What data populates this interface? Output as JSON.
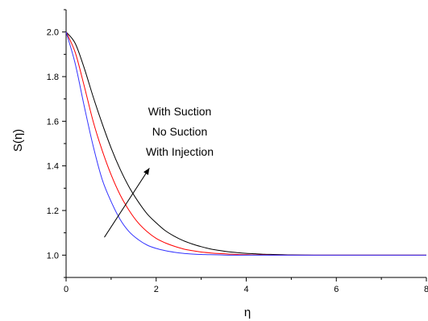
{
  "chart_data": {
    "type": "line",
    "title": "",
    "xlabel": "η",
    "ylabel": "S(η)",
    "xlim": [
      0,
      8
    ],
    "ylim": [
      0.9,
      2.1
    ],
    "xticks": [
      0,
      2,
      4,
      6,
      8
    ],
    "yticks": [
      1.0,
      1.2,
      1.4,
      1.6,
      1.8,
      2.0
    ],
    "xtick_labels": [
      "0",
      "2",
      "4",
      "6",
      "8"
    ],
    "ytick_labels": [
      "1.0",
      "1.2",
      "1.4",
      "1.6",
      "1.8",
      "2.0"
    ],
    "grid": false,
    "x": [
      0,
      0.2,
      0.4,
      0.6,
      0.8,
      1.0,
      1.2,
      1.4,
      1.6,
      1.8,
      2.0,
      2.2,
      2.4,
      2.6,
      2.8,
      3.0,
      3.2,
      3.4,
      3.6,
      3.8,
      4.0,
      4.2,
      4.4,
      4.6,
      4.8,
      5.0,
      5.5,
      6.0,
      6.5,
      7.0,
      7.5,
      8.0
    ],
    "series": [
      {
        "color": "#000000",
        "values": [
          2.0,
          1.95,
          1.84,
          1.71,
          1.59,
          1.48,
          1.385,
          1.305,
          1.24,
          1.185,
          1.145,
          1.11,
          1.085,
          1.065,
          1.05,
          1.038,
          1.028,
          1.021,
          1.015,
          1.011,
          1.008,
          1.006,
          1.004,
          1.003,
          1.002,
          1.001,
          1.0,
          1.0,
          1.0,
          1.0,
          1.0,
          1.0
        ]
      },
      {
        "color": "#ff0000",
        "values": [
          2.0,
          1.91,
          1.76,
          1.6,
          1.47,
          1.36,
          1.27,
          1.2,
          1.145,
          1.105,
          1.075,
          1.055,
          1.04,
          1.028,
          1.02,
          1.014,
          1.01,
          1.007,
          1.005,
          1.003,
          1.002,
          1.001,
          1.001,
          1.0,
          1.0,
          1.0,
          1.0,
          1.0,
          1.0,
          1.0,
          1.0,
          1.0
        ]
      },
      {
        "color": "#3333ff",
        "values": [
          2.0,
          1.86,
          1.67,
          1.49,
          1.34,
          1.24,
          1.16,
          1.105,
          1.07,
          1.045,
          1.03,
          1.02,
          1.013,
          1.008,
          1.005,
          1.003,
          1.002,
          1.001,
          1.0,
          1.0,
          1.0,
          1.0,
          1.0,
          1.0,
          1.0,
          1.0,
          1.0,
          1.0,
          1.0,
          1.0,
          1.0,
          1.0
        ]
      }
    ],
    "annotation": {
      "lines": [
        "With Suction",
        "No Suction",
        "With Injection"
      ],
      "arrow_from": [
        0.85,
        1.08
      ],
      "arrow_to": [
        1.85,
        1.39
      ]
    }
  }
}
